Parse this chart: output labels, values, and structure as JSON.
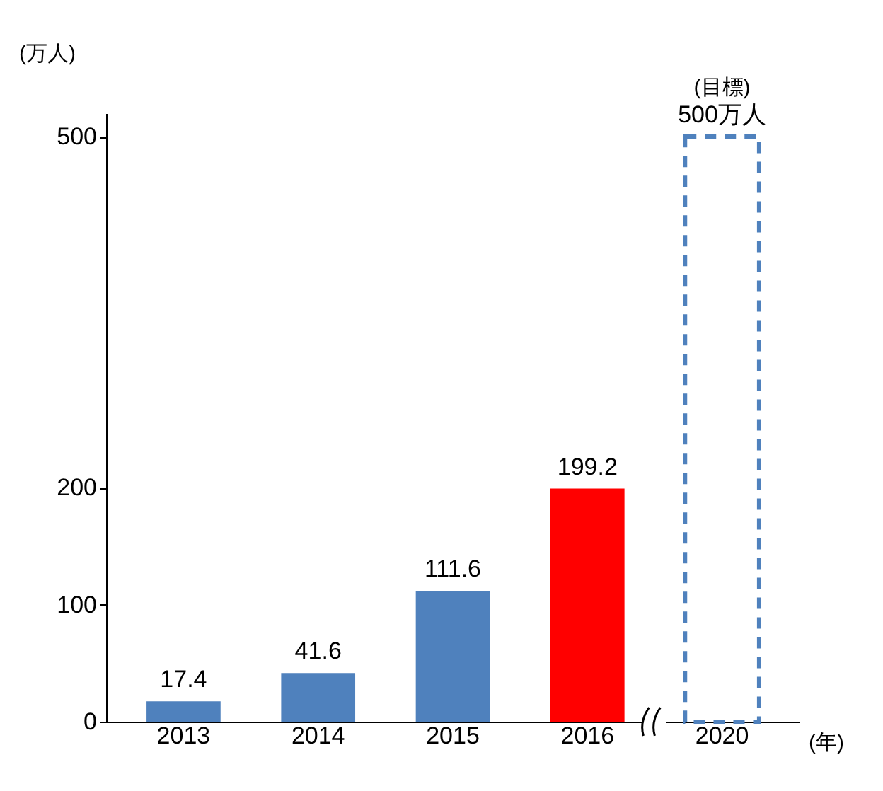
{
  "chart_data": {
    "type": "bar",
    "ylabel": "(万人)",
    "xlabel": "(年)",
    "categories": [
      "2013",
      "2014",
      "2015",
      "2016",
      "2020"
    ],
    "series": [
      {
        "colors": [
          "#4f81bd",
          "#4f81bd",
          "#4f81bd",
          "#ff0000",
          null
        ],
        "values": [
          17.4,
          41.6,
          111.6,
          199.2,
          null
        ],
        "value_labels": [
          "17.4",
          "41.6",
          "111.6",
          "199.2",
          null
        ]
      },
      {
        "color": "#4f81bd",
        "line_style": "dashed",
        "values": [
          null,
          null,
          null,
          null,
          500
        ],
        "value_labels": [
          null,
          null,
          null,
          null,
          "500万人"
        ]
      }
    ],
    "annotations": [
      "(目標)"
    ],
    "ylim": [
      0,
      520
    ],
    "yticks": [
      0,
      100,
      200,
      500
    ]
  }
}
